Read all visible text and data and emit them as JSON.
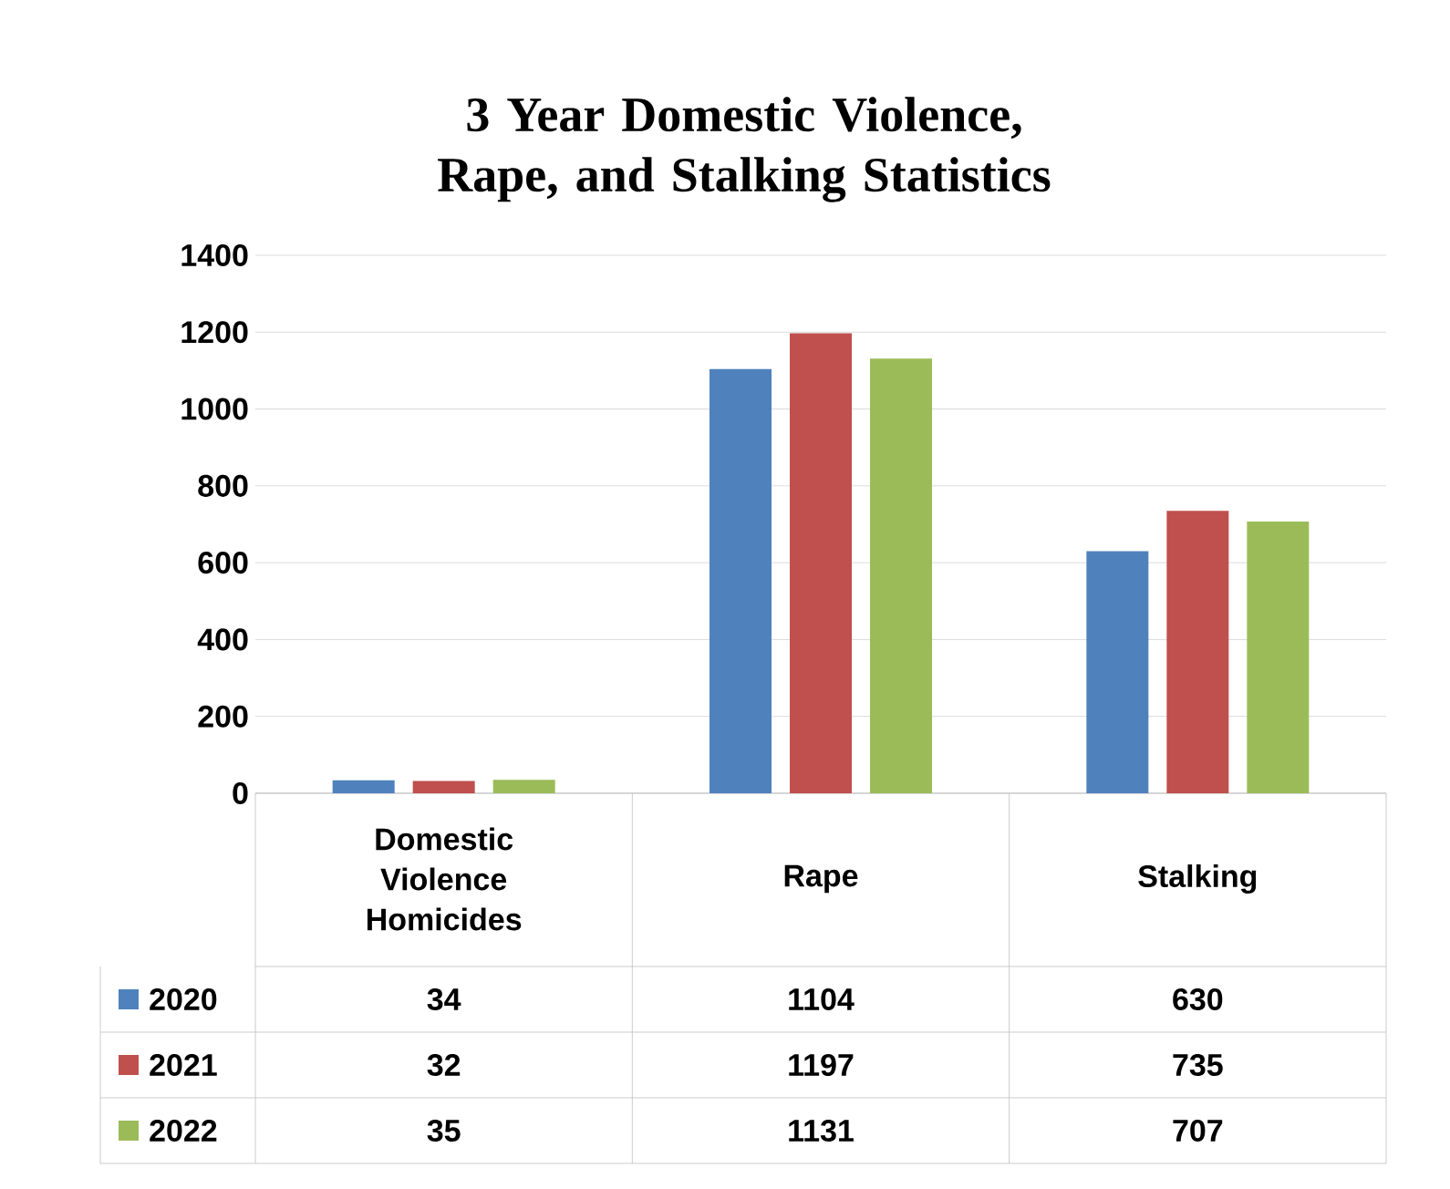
{
  "chart_data": {
    "type": "bar",
    "title": "3 Year Domestic Violence, Rape, and Stalking Statistics",
    "categories": [
      "Domestic Violence Homicides",
      "Rape",
      "Stalking"
    ],
    "series": [
      {
        "name": "2020",
        "color": "#4f81bd",
        "values": [
          34,
          1104,
          630
        ]
      },
      {
        "name": "2021",
        "color": "#c0504d",
        "values": [
          32,
          1197,
          735
        ]
      },
      {
        "name": "2022",
        "color": "#9bbb59",
        "values": [
          35,
          1131,
          707
        ]
      }
    ],
    "ylim": [
      0,
      1400
    ],
    "yticks": [
      0,
      200,
      400,
      600,
      800,
      1000,
      1200,
      1400
    ],
    "grid": "y",
    "legend": "bottom",
    "data_labels": true
  }
}
